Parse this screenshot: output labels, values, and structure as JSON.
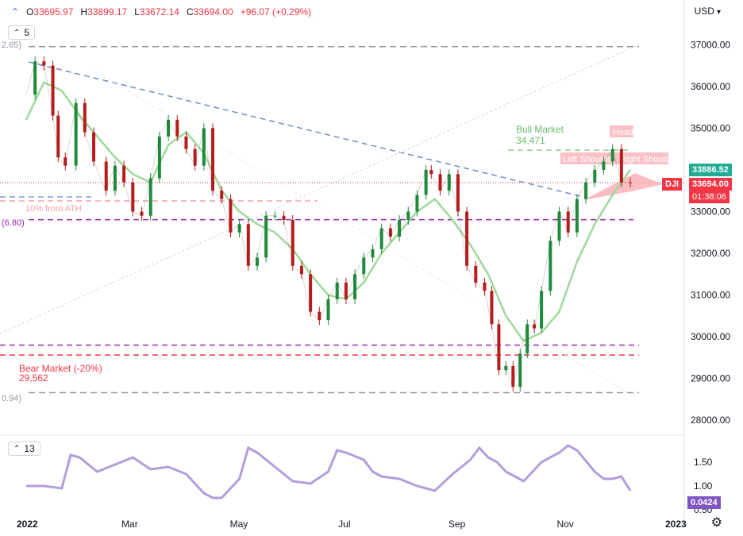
{
  "ohlc": {
    "open_key": "O",
    "open": "33695.97",
    "high_key": "H",
    "high": "33899.17",
    "low_key": "L",
    "low": "33672.14",
    "close_key": "C",
    "close": "33694.00",
    "change": "+96.07 (+0.29%)"
  },
  "currency": "USD",
  "price_indicator_chip": "5",
  "lower_indicator_chip": "13",
  "price_axis": {
    "ticks": [
      {
        "v": 37000,
        "label": "37000.00"
      },
      {
        "v": 36000,
        "label": "36000.00"
      },
      {
        "v": 35000,
        "label": "35000.00"
      },
      {
        "v": 34000,
        "label": "34000.00"
      },
      {
        "v": 33000,
        "label": "33000.00"
      },
      {
        "v": 32000,
        "label": "32000.00"
      },
      {
        "v": 31000,
        "label": "31000.00"
      },
      {
        "v": 30000,
        "label": "30000.00"
      },
      {
        "v": 29000,
        "label": "29000.00"
      },
      {
        "v": 28000,
        "label": "28000.00"
      }
    ]
  },
  "lower_axis": {
    "ticks": [
      {
        "v": 1.5,
        "label": "1.50"
      },
      {
        "v": 1.0,
        "label": "1.00"
      },
      {
        "v": 0.5,
        "label": "0.50"
      }
    ]
  },
  "time_axis": [
    {
      "label": "2022",
      "bold": true,
      "day": 0
    },
    {
      "label": "Mar",
      "bold": false,
      "day": 59
    },
    {
      "label": "May",
      "bold": false,
      "day": 120
    },
    {
      "label": "Jul",
      "bold": false,
      "day": 181
    },
    {
      "label": "Sep",
      "bold": false,
      "day": 243
    },
    {
      "label": "Nov",
      "bold": false,
      "day": 304
    },
    {
      "label": "2023",
      "bold": true,
      "day": 365
    }
  ],
  "price_tags": {
    "green_value": "33886.52",
    "dji_label": "DJI",
    "last_price": "33694.00",
    "countdown": "01:38:06",
    "indicator_value": "0.0424"
  },
  "annotations": {
    "bull_title": "Bull Market",
    "bull_value": "34,471",
    "bear_title": "Bear Market (-20%)",
    "bear_value": "29,562",
    "head": "Head",
    "left_shoulder": "Left Shoulder",
    "right_shoulder": "Right Shoulder",
    "fib_top": "2.65)",
    "fib_mid": "(6.80)",
    "fib_bottom": "0.94)",
    "ten_pct": "10% from ATH"
  },
  "levels": {
    "ath": 36952.65,
    "bull": 34471,
    "ten_pct": 33257,
    "fib_mid": 32806.8,
    "bear_upper": 29800,
    "bear": 29562,
    "low": 28660.94
  },
  "chart_data": {
    "type": "line",
    "title": "",
    "series": [
      {
        "name": "",
        "description_ref": "daily close (approximate)",
        "x": [
          0,
          5,
          10,
          15,
          18,
          22,
          28,
          33,
          38,
          45,
          50,
          55,
          60,
          65,
          70,
          75,
          80,
          85,
          90,
          95,
          100,
          105,
          110,
          115,
          120,
          125,
          130,
          135,
          140,
          145,
          150,
          155,
          160,
          165,
          170,
          175,
          180,
          185,
          190,
          195,
          200,
          205,
          210,
          215,
          220,
          225,
          228,
          233,
          238,
          243,
          248,
          253,
          258,
          262,
          266,
          270,
          274,
          278,
          282,
          286,
          290,
          295,
          300,
          305,
          310,
          315,
          320,
          325,
          330,
          335,
          340
        ],
        "y": [
          35800,
          36600,
          36500,
          35300,
          34300,
          34100,
          35600,
          34900,
          34200,
          33500,
          34100,
          33700,
          33000,
          32900,
          33800,
          34800,
          35200,
          34800,
          34500,
          34100,
          35000,
          33500,
          33300,
          32500,
          32700,
          31700,
          31900,
          32900,
          32900,
          32800,
          31700,
          31500,
          30600,
          30400,
          30900,
          31300,
          30900,
          31500,
          31900,
          32100,
          32600,
          32400,
          32800,
          33000,
          33400,
          34000,
          33900,
          33500,
          33900,
          33000,
          31700,
          31300,
          31100,
          30300,
          29200,
          29300,
          28800,
          29600,
          30300,
          30200,
          31100,
          32300,
          33000,
          32500,
          33300,
          33700,
          34000,
          34200,
          34500,
          33700,
          33694
        ]
      },
      {
        "name": "",
        "description_ref": "moving average (approximate)",
        "x": [
          0,
          10,
          20,
          30,
          40,
          50,
          60,
          70,
          80,
          90,
          100,
          110,
          120,
          130,
          140,
          150,
          160,
          170,
          180,
          190,
          200,
          210,
          220,
          230,
          240,
          250,
          260,
          270,
          280,
          290,
          300,
          310,
          320,
          330,
          340
        ],
        "y": [
          35200,
          36100,
          35900,
          35300,
          34800,
          34300,
          33900,
          33700,
          34600,
          34900,
          34400,
          33500,
          33000,
          32700,
          32500,
          32100,
          31500,
          31000,
          30900,
          31300,
          32000,
          32500,
          33000,
          33300,
          32800,
          32200,
          31500,
          30500,
          29900,
          30100,
          30600,
          31800,
          32700,
          33400,
          34000
        ]
      },
      {
        "name": "",
        "description_ref": "lower indicator (approximate)",
        "x": [
          0,
          10,
          20,
          25,
          30,
          40,
          50,
          60,
          70,
          80,
          90,
          100,
          105,
          110,
          120,
          125,
          130,
          140,
          150,
          160,
          170,
          175,
          180,
          190,
          195,
          200,
          210,
          220,
          230,
          240,
          250,
          255,
          260,
          265,
          270,
          280,
          290,
          300,
          305,
          310,
          320,
          325,
          330,
          335,
          340
        ],
        "y": [
          1.0,
          1.0,
          0.95,
          1.65,
          1.6,
          1.3,
          1.45,
          1.6,
          1.35,
          1.4,
          1.25,
          0.85,
          0.75,
          0.75,
          1.15,
          1.8,
          1.7,
          1.4,
          1.1,
          1.05,
          1.3,
          1.75,
          1.7,
          1.55,
          1.3,
          1.2,
          1.15,
          1.0,
          0.9,
          1.25,
          1.55,
          1.8,
          1.6,
          1.5,
          1.3,
          1.1,
          1.5,
          1.7,
          1.85,
          1.75,
          1.3,
          1.15,
          1.15,
          1.2,
          0.9
        ]
      }
    ],
    "xlim": [
      0,
      365
    ],
    "ylim": [
      27700,
      37500
    ],
    "indicator_ylim": [
      0.45,
      2.0
    ]
  }
}
